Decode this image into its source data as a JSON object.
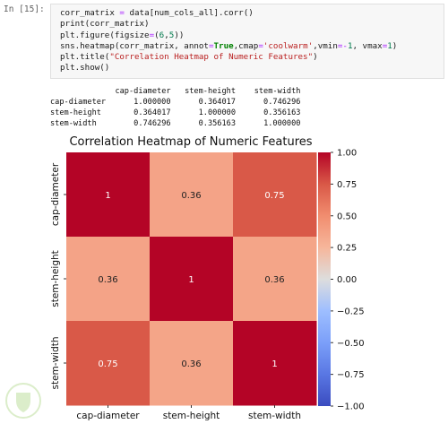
{
  "cell": {
    "prompt": "In [15]:",
    "code_lines": [
      [
        {
          "t": "corr_matrix "
        },
        {
          "t": "=",
          "c": "op"
        },
        {
          "t": " data[num_cols_all].corr()"
        }
      ],
      [
        {
          "t": "print",
          "c": "fn"
        },
        {
          "t": "(corr_matrix)"
        }
      ],
      [
        {
          "t": "plt.figure(figsize"
        },
        {
          "t": "=",
          "c": "op"
        },
        {
          "t": "("
        },
        {
          "t": "6",
          "c": "num"
        },
        {
          "t": ","
        },
        {
          "t": "5",
          "c": "num"
        },
        {
          "t": "))"
        }
      ],
      [
        {
          "t": "sns.heatmap(corr_matrix, annot"
        },
        {
          "t": "=",
          "c": "op"
        },
        {
          "t": "True",
          "c": "kw"
        },
        {
          "t": ",cmap"
        },
        {
          "t": "=",
          "c": "op"
        },
        {
          "t": "'coolwarm'",
          "c": "str"
        },
        {
          "t": ",vmin"
        },
        {
          "t": "=-",
          "c": "op"
        },
        {
          "t": "1",
          "c": "num"
        },
        {
          "t": ", vmax"
        },
        {
          "t": "=",
          "c": "op"
        },
        {
          "t": "1",
          "c": "num"
        },
        {
          "t": ")"
        }
      ],
      [
        {
          "t": "plt.title("
        },
        {
          "t": "\"Correlation Heatmap of Numeric Features\"",
          "c": "str"
        },
        {
          "t": ")"
        }
      ],
      [
        {
          "t": "plt.show()"
        }
      ]
    ]
  },
  "output_table": {
    "columns": [
      "cap-diameter",
      "stem-height",
      "stem-width"
    ],
    "rows": [
      {
        "label": "cap-diameter",
        "values": [
          "1.000000",
          "0.364017",
          "0.746296"
        ]
      },
      {
        "label": "stem-height",
        "values": [
          "0.364017",
          "1.000000",
          "0.356163"
        ]
      },
      {
        "label": "stem-width",
        "values": [
          "0.746296",
          "0.356163",
          "1.000000"
        ]
      }
    ]
  },
  "chart_data": {
    "type": "heatmap",
    "title": "Correlation Heatmap of Numeric Features",
    "x_categories": [
      "cap-diameter",
      "stem-height",
      "stem-width"
    ],
    "y_categories": [
      "cap-diameter",
      "stem-height",
      "stem-width"
    ],
    "values": [
      [
        1.0,
        0.364017,
        0.746296
      ],
      [
        0.364017,
        1.0,
        0.356163
      ],
      [
        0.746296,
        0.356163,
        1.0
      ]
    ],
    "annotations": [
      [
        "1",
        "0.36",
        "0.75"
      ],
      [
        "0.36",
        "1",
        "0.36"
      ],
      [
        "0.75",
        "0.36",
        "1"
      ]
    ],
    "colormap": "coolwarm",
    "vmin": -1,
    "vmax": 1,
    "colorbar_ticks": [
      "1.00",
      "0.75",
      "0.50",
      "0.25",
      "0.00",
      "−0.25",
      "−0.50",
      "−0.75",
      "−1.00"
    ],
    "colors": {
      "high": "#b40426",
      "mid": "#dddddd",
      "low": "#3b4cc0"
    }
  }
}
